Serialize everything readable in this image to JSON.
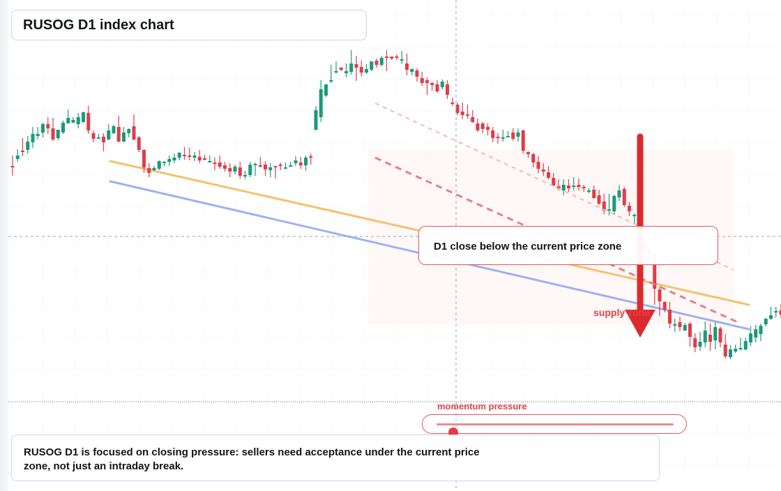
{
  "title": "RUSOG D1 index chart",
  "note": "D1 close below the current price zone",
  "summary": "RUSOG D1 is focused on closing pressure: sellers need acceptance under the current price zone, not just an intraday break.",
  "zone_label": "supply zone",
  "pressure": {
    "label": "momentum pressure",
    "value": 0.07
  },
  "colors": {
    "up": "#1a9a7a",
    "down": "#e03c4a",
    "line_orange": "#f6c06f",
    "line_blue": "#9db1f2",
    "arrow": "#dc2a2c"
  },
  "chart_data": {
    "type": "candlestick",
    "title": "RUSOG D1 index chart",
    "ohlc": [
      [
        160,
        159,
        175,
        146
      ],
      [
        170,
        175,
        184,
        166
      ],
      [
        182,
        180,
        200,
        174
      ],
      [
        183,
        195,
        203,
        178
      ],
      [
        194,
        206,
        216,
        186
      ],
      [
        203,
        206,
        216,
        198
      ],
      [
        208,
        220,
        222,
        201
      ],
      [
        220,
        214,
        230,
        206
      ],
      [
        214,
        198,
        229,
        196
      ],
      [
        200,
        212,
        212,
        197
      ],
      [
        208,
        222,
        225,
        206
      ],
      [
        221,
        229,
        241,
        221
      ],
      [
        222,
        226,
        230,
        222
      ],
      [
        220,
        230,
        236,
        214
      ],
      [
        223,
        237,
        238,
        222
      ],
      [
        236,
        211,
        246,
        206
      ],
      [
        207,
        199,
        211,
        194
      ],
      [
        199,
        201,
        206,
        199
      ],
      [
        202,
        194,
        207,
        181
      ],
      [
        198,
        211,
        220,
        197
      ],
      [
        207,
        217,
        219,
        206
      ],
      [
        216,
        195,
        232,
        194
      ],
      [
        195,
        208,
        216,
        194
      ],
      [
        207,
        213,
        214,
        201
      ],
      [
        217,
        198,
        234,
        197
      ],
      [
        201,
        183,
        203,
        180
      ],
      [
        183,
        158,
        184,
        150
      ],
      [
        157,
        150,
        164,
        144
      ],
      [
        154,
        157,
        160,
        153
      ],
      [
        156,
        167,
        168,
        154
      ],
      [
        164,
        166,
        167,
        160
      ],
      [
        166,
        170,
        175,
        160
      ],
      [
        168,
        172,
        178,
        164
      ],
      [
        172,
        179,
        180,
        168
      ],
      [
        176,
        174,
        187,
        169
      ],
      [
        175,
        173,
        186,
        168
      ],
      [
        172,
        175,
        180,
        167
      ],
      [
        173,
        168,
        183,
        164
      ],
      [
        171,
        169,
        176,
        168
      ],
      [
        166,
        167,
        175,
        165
      ],
      [
        165,
        164,
        172,
        154
      ],
      [
        165,
        159,
        175,
        156
      ],
      [
        161,
        156,
        166,
        152
      ],
      [
        157,
        152,
        164,
        144
      ],
      [
        152,
        159,
        162,
        148
      ],
      [
        158,
        146,
        166,
        142
      ],
      [
        146,
        147,
        153,
        141
      ],
      [
        147,
        162,
        166,
        144
      ],
      [
        162,
        163,
        165,
        146
      ],
      [
        161,
        160,
        173,
        158
      ],
      [
        162,
        155,
        167,
        146
      ],
      [
        154,
        158,
        164,
        144
      ],
      [
        160,
        159,
        160,
        142
      ],
      [
        162,
        161,
        165,
        154
      ],
      [
        158,
        158,
        165,
        157
      ],
      [
        161,
        161,
        166,
        160
      ],
      [
        164,
        168,
        174,
        160
      ],
      [
        165,
        161,
        173,
        156
      ],
      [
        161,
        172,
        175,
        153
      ],
      [
        174,
        172,
        178,
        162
      ],
      [
        212,
        240,
        246,
        211
      ],
      [
        230,
        270,
        283,
        223
      ],
      [
        261,
        277,
        277,
        259
      ],
      [
        282,
        283,
        305,
        279
      ],
      [
        295,
        296,
        310,
        293
      ],
      [
        301,
        298,
        302,
        296
      ],
      [
        293,
        296,
        307,
        287
      ],
      [
        295,
        307,
        326,
        291
      ],
      [
        306,
        301,
        318,
        282
      ],
      [
        302,
        294,
        311,
        289
      ],
      [
        294,
        299,
        306,
        292
      ],
      [
        298,
        310,
        307,
        296
      ],
      [
        311,
        305,
        314,
        301
      ],
      [
        305,
        315,
        318,
        303
      ],
      [
        317,
        315,
        326,
        296
      ],
      [
        317,
        314,
        317,
        312
      ],
      [
        317,
        316,
        320,
        312
      ],
      [
        312,
        313,
        325,
        306
      ],
      [
        307,
        298,
        321,
        290
      ],
      [
        295,
        299,
        300,
        290
      ],
      [
        297,
        288,
        300,
        281
      ],
      [
        286,
        279,
        295,
        275
      ],
      [
        283,
        279,
        287,
        262
      ],
      [
        279,
        276,
        280,
        268
      ],
      [
        277,
        267,
        283,
        265
      ],
      [
        273,
        281,
        284,
        270
      ],
      [
        277,
        262,
        283,
        256
      ],
      [
        251,
        250,
        258,
        246
      ],
      [
        248,
        236,
        251,
        233
      ],
      [
        238,
        233,
        251,
        227
      ],
      [
        234,
        232,
        248,
        228
      ],
      [
        230,
        223,
        240,
        222
      ],
      [
        221,
        211,
        228,
        209
      ],
      [
        221,
        213,
        223,
        207
      ],
      [
        216,
        212,
        221,
        204
      ],
      [
        211,
        200,
        216,
        194
      ],
      [
        202,
        200,
        207,
        192
      ],
      [
        199,
        201,
        212,
        195
      ],
      [
        203,
        203,
        210,
        201
      ],
      [
        208,
        199,
        214,
        196
      ],
      [
        202,
        208,
        214,
        195
      ],
      [
        211,
        182,
        212,
        178
      ],
      [
        180,
        177,
        181,
        172
      ],
      [
        177,
        165,
        179,
        158
      ],
      [
        166,
        156,
        174,
        150
      ],
      [
        155,
        152,
        164,
        146
      ],
      [
        151,
        143,
        160,
        141
      ],
      [
        143,
        132,
        150,
        131
      ],
      [
        131,
        127,
        141,
        125
      ],
      [
        125,
        133,
        141,
        118
      ],
      [
        132,
        128,
        141,
        123
      ],
      [
        130,
        132,
        144,
        125
      ],
      [
        133,
        130,
        142,
        125
      ],
      [
        130,
        128,
        133,
        123
      ],
      [
        124,
        125,
        128,
        121
      ],
      [
        126,
        114,
        132,
        113
      ],
      [
        118,
        106,
        126,
        104
      ],
      [
        109,
        96,
        120,
        91
      ],
      [
        96,
        98,
        120,
        89
      ],
      [
        95,
        117,
        119,
        90
      ],
      [
        115,
        125,
        133,
        110
      ],
      [
        127,
        104,
        130,
        101
      ],
      [
        103,
        95,
        108,
        88
      ],
      [
        89,
        90,
        92,
        76
      ],
      [
        86,
        56,
        94,
        55
      ],
      [
        51,
        40,
        54,
        38
      ],
      [
        37,
        34,
        45,
        26
      ],
      [
        33,
        -16,
        34,
        -39
      ],
      [
        -17,
        -34,
        -14,
        -55
      ],
      [
        -35,
        -46,
        -34,
        -50
      ],
      [
        -46,
        -66,
        -35,
        -73
      ],
      [
        -67,
        -67,
        -59,
        -78
      ],
      [
        -64,
        -71,
        -56,
        -77
      ],
      [
        -76,
        -68,
        -65,
        -76
      ],
      [
        -66,
        -85,
        -64,
        -99
      ],
      [
        -87,
        -100,
        -80,
        -107
      ],
      [
        -99,
        -92,
        -78,
        -105
      ],
      [
        -93,
        -76,
        -63,
        -100
      ],
      [
        -82,
        -92,
        -66,
        -105
      ],
      [
        -90,
        -71,
        -64,
        -103
      ],
      [
        -73,
        -93,
        -70,
        -100
      ],
      [
        -96,
        -113,
        -81,
        -116
      ],
      [
        -114,
        -103,
        -97,
        -117
      ],
      [
        -106,
        -102,
        -96,
        -108
      ],
      [
        -103,
        -101,
        -86,
        -104
      ],
      [
        -103,
        -91,
        -86,
        -104
      ],
      [
        -93,
        -80,
        -70,
        -98
      ],
      [
        -86,
        -74,
        -68,
        -93
      ],
      [
        -81,
        -69,
        -66,
        -91
      ],
      [
        -67,
        -59,
        -58,
        -70
      ],
      [
        -59,
        -54,
        -42,
        -61
      ],
      [
        -50,
        -48,
        -42,
        -57
      ],
      [
        -47,
        -53,
        -38,
        -58
      ],
      [
        -55,
        -49,
        -42,
        -58
      ],
      [
        -53,
        -44,
        -42,
        -66
      ]
    ],
    "trendlines": [
      {
        "color": "orange",
        "from": [
          0,
          167
        ],
        "to": [
          149,
          -39
        ]
      },
      {
        "color": "blue",
        "from": [
          0,
          138
        ],
        "to": [
          149,
          -74
        ]
      }
    ]
  }
}
